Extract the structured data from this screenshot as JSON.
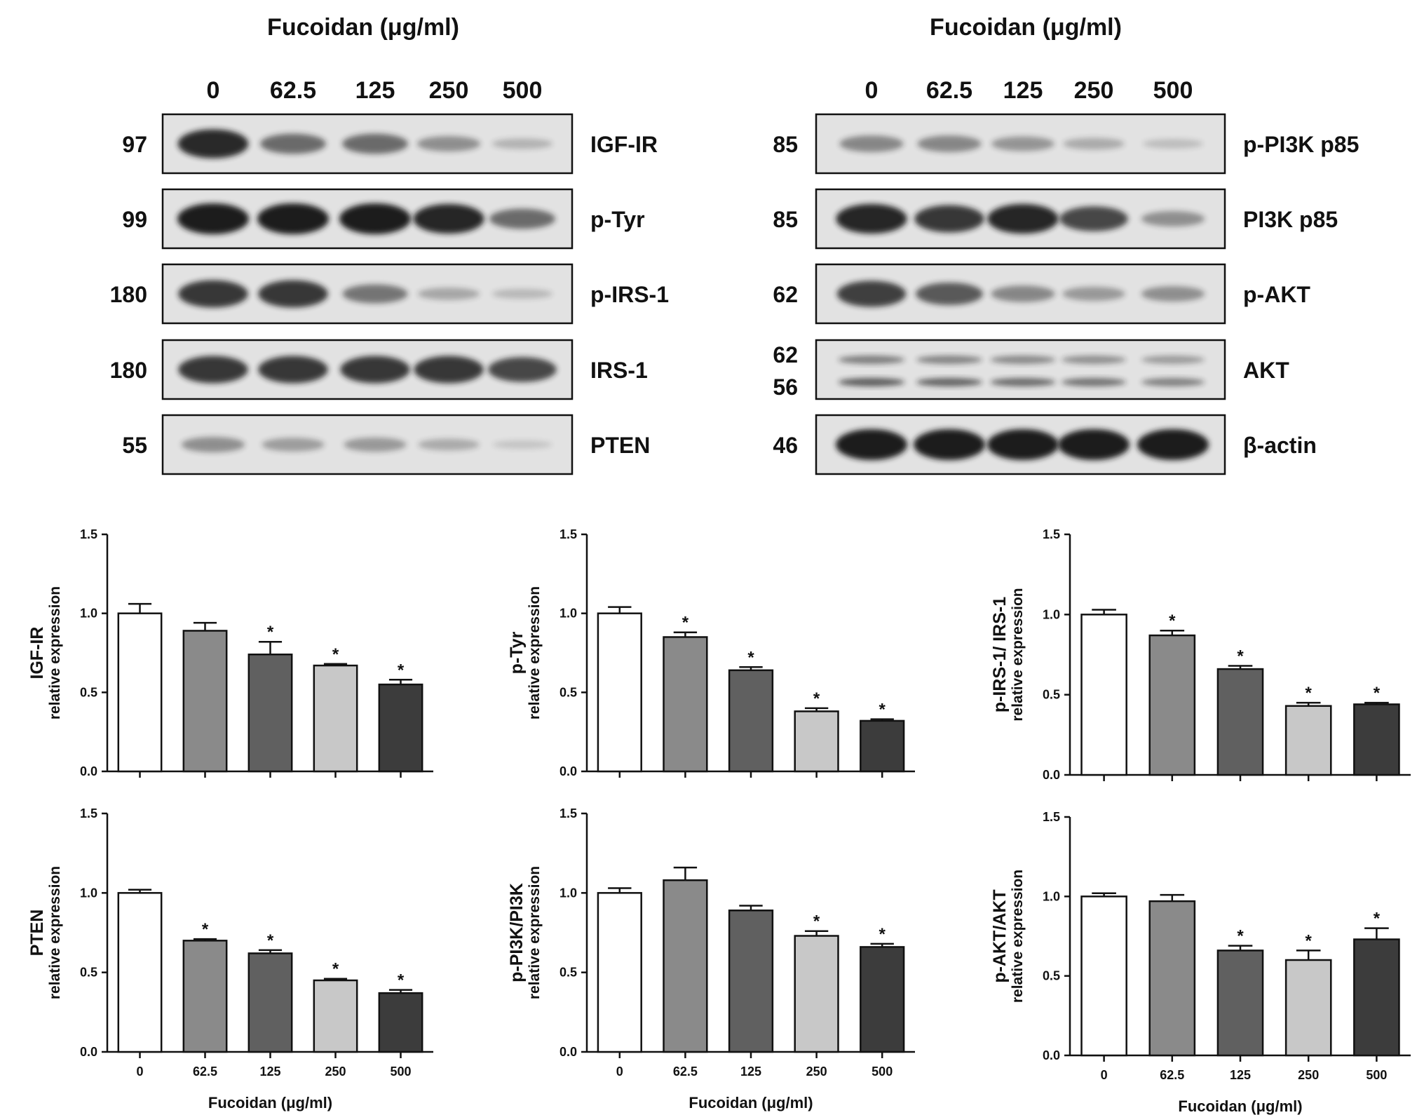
{
  "figure": {
    "left_panel": {
      "title": "Fucoidan (μg/ml)",
      "lanes": [
        "0",
        "62.5",
        "125",
        "250",
        "500"
      ],
      "blots": [
        {
          "name": "IGF-IR",
          "kda": [
            "97"
          ],
          "intensity": [
            0.92,
            0.55,
            0.55,
            0.35,
            0.15
          ]
        },
        {
          "name": "p-Tyr",
          "kda": [
            "99"
          ],
          "intensity": [
            1.0,
            1.0,
            1.0,
            0.95,
            0.55
          ]
        },
        {
          "name": "p-IRS-1",
          "kda": [
            "180"
          ],
          "intensity": [
            0.85,
            0.85,
            0.5,
            0.22,
            0.12
          ]
        },
        {
          "name": "IRS-1",
          "kda": [
            "180"
          ],
          "intensity": [
            0.85,
            0.85,
            0.85,
            0.85,
            0.75
          ]
        },
        {
          "name": "PTEN",
          "kda": [
            "55"
          ],
          "intensity": [
            0.35,
            0.28,
            0.3,
            0.2,
            0.06
          ]
        }
      ]
    },
    "right_panel": {
      "title": "Fucoidan (μg/ml)",
      "lanes": [
        "0",
        "62.5",
        "125",
        "250",
        "500"
      ],
      "blots": [
        {
          "name": "p-PI3K p85",
          "kda": [
            "85"
          ],
          "intensity": [
            0.4,
            0.4,
            0.32,
            0.2,
            0.1
          ]
        },
        {
          "name": "PI3K p85",
          "kda": [
            "85"
          ],
          "intensity": [
            0.95,
            0.85,
            0.95,
            0.75,
            0.35
          ]
        },
        {
          "name": "p-AKT",
          "kda": [
            "62"
          ],
          "intensity": [
            0.8,
            0.65,
            0.4,
            0.3,
            0.35
          ]
        },
        {
          "name": "AKT",
          "kda": [
            "62",
            "56"
          ],
          "intensity": [
            0.6,
            0.55,
            0.5,
            0.45,
            0.35
          ]
        },
        {
          "name": "β-actin",
          "kda": [
            "46"
          ],
          "intensity": [
            1.0,
            1.0,
            1.0,
            1.0,
            1.0
          ]
        }
      ]
    }
  },
  "chart_data": [
    {
      "type": "bar",
      "ylabel_top": "IGF-IR",
      "ylabel": "relative expression",
      "xlabel": "",
      "categories": [
        "0",
        "62.5",
        "125",
        "250",
        "500"
      ],
      "values": [
        1.0,
        0.89,
        0.74,
        0.67,
        0.55
      ],
      "errors": [
        0.06,
        0.05,
        0.08,
        0.01,
        0.03
      ],
      "significance": [
        "",
        "",
        "*",
        "*",
        "*"
      ],
      "ylim": [
        0,
        1.5
      ],
      "yticks": [
        "0.0",
        "0.5",
        "1.0",
        "1.5"
      ],
      "show_xticklabels": false
    },
    {
      "type": "bar",
      "ylabel_top": "p-Tyr",
      "ylabel": "relative expression",
      "xlabel": "",
      "categories": [
        "0",
        "62.5",
        "125",
        "250",
        "500"
      ],
      "values": [
        1.0,
        0.85,
        0.64,
        0.38,
        0.32
      ],
      "errors": [
        0.04,
        0.03,
        0.02,
        0.02,
        0.01
      ],
      "significance": [
        "",
        "*",
        "*",
        "*",
        "*"
      ],
      "ylim": [
        0,
        1.5
      ],
      "yticks": [
        "0.0",
        "0.5",
        "1.0",
        "1.5"
      ],
      "show_xticklabels": false
    },
    {
      "type": "bar",
      "ylabel_top": "p-IRS-1/ IRS-1",
      "ylabel": "relative expression",
      "xlabel": "",
      "categories": [
        "0",
        "62.5",
        "125",
        "250",
        "500"
      ],
      "values": [
        1.0,
        0.87,
        0.66,
        0.43,
        0.44
      ],
      "errors": [
        0.03,
        0.03,
        0.02,
        0.02,
        0.01
      ],
      "significance": [
        "",
        "*",
        "*",
        "*",
        "*"
      ],
      "ylim": [
        0,
        1.5
      ],
      "yticks": [
        "0.0",
        "0.5",
        "1.0",
        "1.5"
      ],
      "show_xticklabels": false
    },
    {
      "type": "bar",
      "ylabel_top": "PTEN",
      "ylabel": "relative expression",
      "xlabel": "Fucoidan (μg/ml)",
      "categories": [
        "0",
        "62.5",
        "125",
        "250",
        "500"
      ],
      "values": [
        1.0,
        0.7,
        0.62,
        0.45,
        0.37
      ],
      "errors": [
        0.02,
        0.01,
        0.02,
        0.01,
        0.02
      ],
      "significance": [
        "",
        "*",
        "*",
        "*",
        "*"
      ],
      "ylim": [
        0,
        1.5
      ],
      "yticks": [
        "0.0",
        "0.5",
        "1.0",
        "1.5"
      ],
      "show_xticklabels": true
    },
    {
      "type": "bar",
      "ylabel_top": "p-PI3K/PI3K",
      "ylabel": "relative expression",
      "xlabel": "Fucoidan (μg/ml)",
      "categories": [
        "0",
        "62.5",
        "125",
        "250",
        "500"
      ],
      "values": [
        1.0,
        1.08,
        0.89,
        0.73,
        0.66
      ],
      "errors": [
        0.03,
        0.08,
        0.03,
        0.03,
        0.02
      ],
      "significance": [
        "",
        "",
        "",
        "*",
        "*"
      ],
      "ylim": [
        0,
        1.5
      ],
      "yticks": [
        "0.0",
        "0.5",
        "1.0",
        "1.5"
      ],
      "show_xticklabels": true
    },
    {
      "type": "bar",
      "ylabel_top": "p-AKT/AKT",
      "ylabel": "relative expression",
      "xlabel": "Fucoidan (μg/ml)",
      "categories": [
        "0",
        "62.5",
        "125",
        "250",
        "500"
      ],
      "values": [
        1.0,
        0.97,
        0.66,
        0.6,
        0.73
      ],
      "errors": [
        0.02,
        0.04,
        0.03,
        0.06,
        0.07
      ],
      "significance": [
        "",
        "",
        "*",
        "*",
        "*"
      ],
      "ylim": [
        0,
        1.5
      ],
      "yticks": [
        "0.0",
        "0.5",
        "1.0",
        "1.5"
      ],
      "show_xticklabels": true
    }
  ],
  "colors": {
    "bar_fills": [
      "#ffffff",
      "#8a8a8a",
      "#606060",
      "#c8c8c8",
      "#3c3c3c"
    ],
    "bar_stroke": "#111111",
    "blot_background": "#e2e2e2",
    "band_color": "#1a1a1a"
  }
}
